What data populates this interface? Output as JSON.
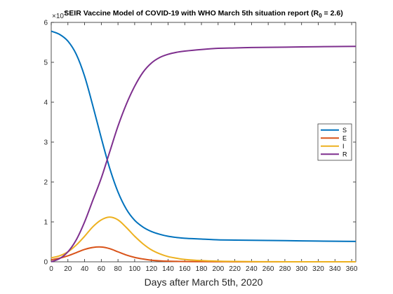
{
  "chart_data": {
    "type": "line",
    "title": "SEIR Vaccine Model of COVID-19 with WHO March 5th situation report (R",
    "title_subscript": "0",
    "title_suffix": " = 2.6)",
    "xlabel": "Days after March 5th, 2020",
    "ylabel": "",
    "y_exponent_base": "×10",
    "y_exponent_power": "7",
    "xlim": [
      0,
      365
    ],
    "ylim": [
      0,
      6
    ],
    "xticks": [
      0,
      20,
      40,
      60,
      80,
      100,
      120,
      140,
      160,
      180,
      200,
      220,
      240,
      260,
      280,
      300,
      320,
      340,
      360
    ],
    "yticks": [
      0,
      1,
      2,
      3,
      4,
      5,
      6
    ],
    "grid": false,
    "legend_position": "right",
    "x": [
      0,
      10,
      20,
      30,
      40,
      50,
      60,
      70,
      80,
      90,
      100,
      110,
      120,
      130,
      140,
      150,
      160,
      180,
      200,
      220,
      240,
      260,
      280,
      300,
      320,
      340,
      365
    ],
    "series": [
      {
        "name": "S",
        "color": "#0072BD",
        "values": [
          5.78,
          5.7,
          5.53,
          5.2,
          4.65,
          3.9,
          3.1,
          2.35,
          1.75,
          1.32,
          1.04,
          0.87,
          0.76,
          0.69,
          0.64,
          0.61,
          0.59,
          0.57,
          0.55,
          0.545,
          0.54,
          0.535,
          0.53,
          0.525,
          0.52,
          0.515,
          0.51
        ]
      },
      {
        "name": "E",
        "color": "#D95319",
        "values": [
          0.05,
          0.09,
          0.15,
          0.23,
          0.31,
          0.36,
          0.37,
          0.33,
          0.25,
          0.17,
          0.11,
          0.07,
          0.04,
          0.025,
          0.015,
          0.01,
          0.007,
          0.004,
          0.002,
          0.001,
          0.001,
          0.0005,
          0.0003,
          0.0002,
          0.0001,
          0.0001,
          0.0
        ]
      },
      {
        "name": "I",
        "color": "#EDB120",
        "values": [
          0.1,
          0.15,
          0.25,
          0.42,
          0.64,
          0.88,
          1.05,
          1.12,
          1.05,
          0.86,
          0.64,
          0.45,
          0.3,
          0.2,
          0.13,
          0.09,
          0.06,
          0.03,
          0.015,
          0.008,
          0.004,
          0.002,
          0.001,
          0.0005,
          0.0003,
          0.0002,
          0.0001
        ]
      },
      {
        "name": "R",
        "color": "#7E2F8E",
        "values": [
          0.0,
          0.08,
          0.25,
          0.55,
          1.0,
          1.55,
          2.1,
          2.75,
          3.4,
          3.95,
          4.4,
          4.75,
          4.98,
          5.12,
          5.2,
          5.25,
          5.28,
          5.32,
          5.35,
          5.36,
          5.37,
          5.375,
          5.38,
          5.385,
          5.39,
          5.395,
          5.4
        ]
      }
    ]
  }
}
